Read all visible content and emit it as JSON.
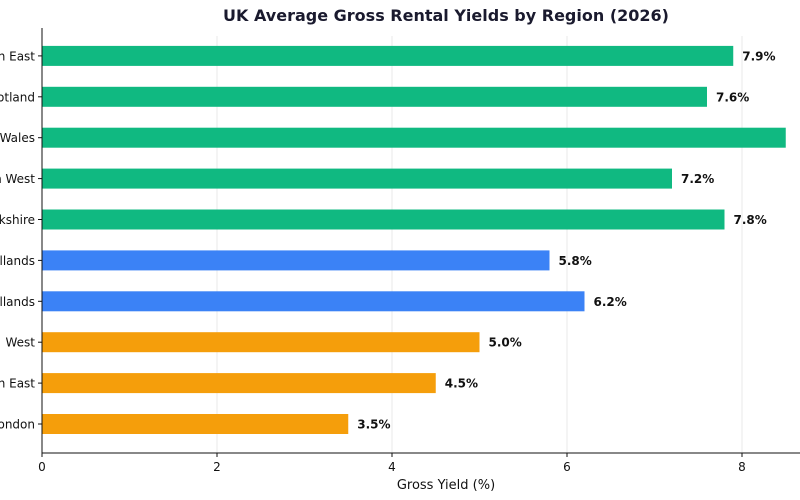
{
  "chart_data": {
    "type": "bar",
    "orientation": "horizontal",
    "title": "UK Average Gross Rental Yields by Region (2026)",
    "xlabel": "Gross Yield (%)",
    "ylabel": "",
    "xlim": [
      0,
      8.7
    ],
    "xticks": [
      "0",
      "2",
      "4",
      "6",
      "8"
    ],
    "grid": "vertical",
    "categories": [
      "London",
      "South East",
      "South West",
      "West Midlands",
      "East Midlands",
      "Yorkshire",
      "North West",
      "Wales",
      "Scotland",
      "North East"
    ],
    "category_labels_visible": [
      "ondon",
      "h East",
      "West",
      "llands",
      "llands",
      "kshire",
      "n West",
      "Wales",
      "otland",
      "h East"
    ],
    "values": [
      3.5,
      4.5,
      5.0,
      6.2,
      5.8,
      7.8,
      7.2,
      8.5,
      7.6,
      7.9
    ],
    "value_labels": [
      "3.5%",
      "4.5%",
      "5.0%",
      "6.2%",
      "5.8%",
      "7.8%",
      "7.2%",
      "",
      "7.6%",
      "7.9%"
    ],
    "bar_colors": [
      "#f59e0b",
      "#f59e0b",
      "#f59e0b",
      "#3b82f6",
      "#3b82f6",
      "#10b981",
      "#10b981",
      "#10b981",
      "#10b981",
      "#10b981"
    ]
  }
}
